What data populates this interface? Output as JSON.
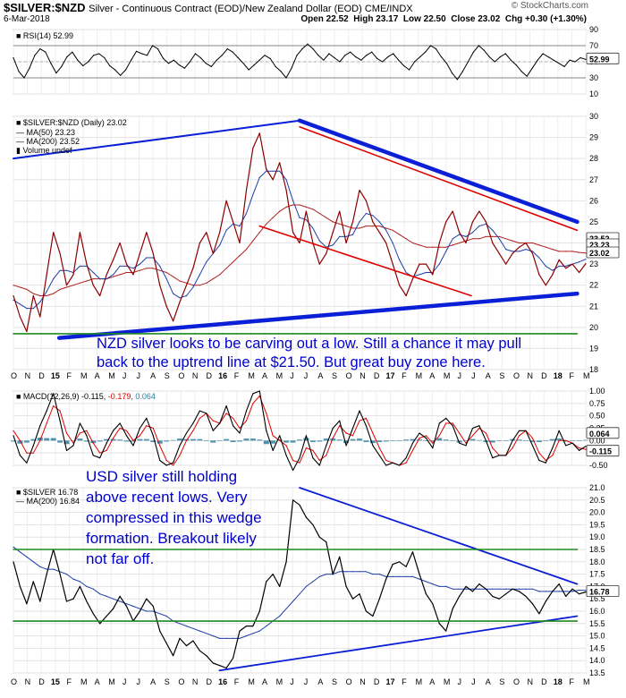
{
  "header": {
    "symbol": "$SILVER:$NZD",
    "description": "Silver - Continuous Contract (EOD)/New Zealand Dollar (EOD) CME/INDX",
    "date": "6-Mar-2018",
    "open": "Open 22.52",
    "high": "High 23.17",
    "low": "Low 22.50",
    "close": "Close 23.02",
    "chg": "Chg +0.30 (+1.30%)",
    "credit": "© StockCharts.com"
  },
  "x_axis": {
    "tick_labels": [
      "O",
      "N",
      "D",
      "15",
      "F",
      "M",
      "A",
      "M",
      "J",
      "J",
      "A",
      "S",
      "O",
      "N",
      "D",
      "16",
      "F",
      "M",
      "A",
      "M",
      "J",
      "J",
      "A",
      "S",
      "O",
      "N",
      "D",
      "17",
      "F",
      "M",
      "A",
      "M",
      "J",
      "J",
      "A",
      "S",
      "O",
      "N",
      "D",
      "18",
      "F",
      "M"
    ]
  },
  "colors": {
    "price": "#8b0000",
    "ma50": "#1f3fa8",
    "ma200": "#b02020",
    "trend_blue": "#0a1fd6",
    "channel_red": "#e00000",
    "support_green": "#1e8a1e",
    "annotation_text": "#0000cc"
  },
  "chart_data": [
    {
      "type": "line",
      "panel": "RSI",
      "legend": "RSI(14) 52.99",
      "last_value": "52.99",
      "y_ticks": [
        90,
        70,
        50,
        30,
        10
      ],
      "ylim": [
        10,
        90
      ],
      "reference_levels": [
        70,
        30
      ],
      "values": [
        55,
        38,
        30,
        42,
        58,
        66,
        62,
        48,
        36,
        44,
        56,
        62,
        52,
        45,
        50,
        58,
        60,
        55,
        45,
        40,
        33,
        40,
        52,
        63,
        60,
        58,
        70,
        66,
        54,
        48,
        52,
        46,
        42,
        50,
        60,
        55,
        48,
        44,
        52,
        58,
        66,
        62,
        55,
        48,
        40,
        46,
        52,
        58,
        54,
        44,
        38,
        30,
        42,
        58,
        66,
        72,
        66,
        58,
        52,
        60,
        55,
        50,
        58,
        62,
        56,
        52,
        58,
        62,
        54,
        50,
        56,
        60,
        52,
        45,
        40,
        50,
        56,
        62,
        70,
        66,
        56,
        48,
        36,
        28,
        38,
        50,
        62,
        70,
        64,
        56,
        50,
        56,
        60,
        52,
        46,
        38,
        32,
        42,
        52,
        60,
        56,
        52,
        48,
        44,
        52,
        50,
        55,
        53
      ]
    },
    {
      "type": "line",
      "panel": "SILVER:NZD",
      "legend": [
        "$SILVER:$NZD (Daily) 23.02",
        "MA(50) 23.23",
        "MA(200) 23.52",
        "Volume undef"
      ],
      "y_ticks": [
        30,
        29,
        28,
        27,
        26,
        25,
        24,
        23,
        22,
        21,
        20,
        19,
        18
      ],
      "ylim": [
        18,
        30
      ],
      "last_labels": [
        "23.52",
        "23.23",
        "23.02"
      ],
      "close": [
        21.5,
        20.5,
        19.8,
        21.5,
        20.5,
        22.5,
        24.5,
        23.5,
        22.0,
        22.5,
        24.5,
        23.0,
        22.0,
        21.5,
        22.5,
        23.2,
        24.0,
        23.0,
        22.5,
        23.5,
        24.5,
        23.5,
        22.0,
        21.0,
        20.3,
        21.2,
        22.0,
        22.8,
        24.0,
        24.5,
        23.5,
        24.5,
        26.0,
        25.0,
        24.0,
        26.5,
        28.5,
        29.2,
        27.5,
        27.0,
        27.8,
        26.5,
        24.5,
        24.0,
        25.5,
        24.0,
        23.0,
        23.5,
        24.5,
        25.5,
        24.0,
        25.0,
        26.5,
        26.0,
        25.0,
        24.5,
        24.0,
        23.0,
        22.0,
        21.5,
        22.3,
        23.0,
        23.0,
        22.5,
        24.0,
        25.0,
        25.5,
        24.5,
        24.0,
        25.0,
        25.5,
        25.0,
        24.0,
        23.5,
        23.0,
        23.5,
        23.8,
        24.0,
        23.5,
        22.5,
        22.0,
        22.5,
        23.2,
        22.8,
        23.0,
        22.6,
        23.02
      ],
      "ma50": [
        21.3,
        21.1,
        20.9,
        20.9,
        21.2,
        21.7,
        22.3,
        22.7,
        22.7,
        22.6,
        22.9,
        22.9,
        22.6,
        22.3,
        22.3,
        22.5,
        22.9,
        22.9,
        22.8,
        23.0,
        23.3,
        23.3,
        22.9,
        22.3,
        21.6,
        21.4,
        21.5,
        21.9,
        22.5,
        23.1,
        23.5,
        23.9,
        24.6,
        24.9,
        24.8,
        25.4,
        26.3,
        27.1,
        27.4,
        27.4,
        27.4,
        27.0,
        26.0,
        25.2,
        25.1,
        24.7,
        24.1,
        23.8,
        23.9,
        24.3,
        24.3,
        24.4,
        25.0,
        25.4,
        25.3,
        25.0,
        24.6,
        24.0,
        23.2,
        22.6,
        22.4,
        22.5,
        22.6,
        22.6,
        23.0,
        23.6,
        24.2,
        24.4,
        24.3,
        24.5,
        24.8,
        24.9,
        24.6,
        24.2,
        23.7,
        23.6,
        23.6,
        23.7,
        23.6,
        23.3,
        22.9,
        22.7,
        22.9,
        22.9,
        23.0,
        23.1,
        23.23
      ],
      "ma200": [
        22.0,
        21.9,
        21.8,
        21.6,
        21.5,
        21.5,
        21.6,
        21.8,
        21.9,
        22.0,
        22.1,
        22.2,
        22.3,
        22.3,
        22.3,
        22.4,
        22.5,
        22.6,
        22.6,
        22.7,
        22.8,
        22.8,
        22.7,
        22.6,
        22.4,
        22.2,
        22.1,
        22.0,
        22.0,
        22.1,
        22.3,
        22.5,
        22.8,
        23.1,
        23.4,
        23.7,
        24.1,
        24.5,
        24.9,
        25.2,
        25.5,
        25.7,
        25.8,
        25.8,
        25.7,
        25.6,
        25.4,
        25.2,
        25.0,
        24.9,
        24.8,
        24.7,
        24.7,
        24.8,
        24.8,
        24.8,
        24.7,
        24.6,
        24.4,
        24.2,
        24.0,
        23.9,
        23.8,
        23.8,
        23.8,
        23.8,
        23.9,
        24.0,
        24.1,
        24.2,
        24.2,
        24.3,
        24.3,
        24.3,
        24.2,
        24.1,
        24.0,
        24.0,
        24.0,
        23.9,
        23.8,
        23.7,
        23.6,
        23.6,
        23.6,
        23.55,
        23.52
      ],
      "trendlines": [
        {
          "name": "support",
          "from": [
            0.08,
            19.5
          ],
          "to": [
            0.985,
            21.6
          ],
          "color": "#0a1fd6"
        },
        {
          "name": "resistance",
          "from": [
            0.5,
            29.8
          ],
          "to": [
            0.985,
            25.0
          ],
          "color": "#0a1fd6"
        },
        {
          "name": "rsi-extension",
          "from": [
            0.0,
            28.0
          ],
          "to": [
            0.5,
            29.8
          ],
          "color": "#0a1fd6"
        },
        {
          "name": "channel-upper",
          "from": [
            0.5,
            29.5
          ],
          "to": [
            0.985,
            24.6
          ],
          "color": "#e00000"
        },
        {
          "name": "channel-lower",
          "from": [
            0.43,
            24.8
          ],
          "to": [
            0.8,
            21.5
          ],
          "color": "#e00000"
        },
        {
          "name": "horizontal-support",
          "from": [
            0.0,
            19.7
          ],
          "to": [
            0.985,
            19.7
          ],
          "color": "#1e8a1e"
        }
      ],
      "annotation": [
        "NZD silver looks to be carving out a low. Still a chance it may pull",
        "back to the uptrend line at $21.50. But great buy zone here."
      ]
    },
    {
      "type": "line",
      "panel": "MACD",
      "legend": [
        "MACD(12,26,9) -0.115,",
        "-0.179,",
        "0.064"
      ],
      "y_ticks": [
        1.0,
        0.75,
        0.5,
        0.25,
        0.0,
        -0.25,
        -0.5
      ],
      "ylim": [
        -0.5,
        1.0
      ],
      "last_labels": [
        "0.064",
        "-0.115"
      ],
      "macd": [
        0.1,
        -0.3,
        -0.45,
        -0.1,
        0.3,
        0.6,
        0.95,
        0.4,
        -0.2,
        -0.1,
        0.35,
        0.1,
        -0.3,
        -0.35,
        -0.05,
        0.2,
        0.35,
        0.1,
        -0.1,
        0.25,
        0.45,
        0.1,
        -0.4,
        -0.5,
        -0.45,
        -0.1,
        0.15,
        0.35,
        0.6,
        0.55,
        0.2,
        0.35,
        0.7,
        0.3,
        0.15,
        0.6,
        0.95,
        1.0,
        0.2,
        -0.2,
        0.1,
        -0.3,
        -0.6,
        -0.35,
        0.1,
        -0.35,
        -0.5,
        -0.1,
        0.25,
        0.4,
        -0.1,
        0.25,
        0.6,
        0.3,
        -0.1,
        -0.3,
        -0.5,
        -0.45,
        -0.5,
        -0.35,
        -0.05,
        0.15,
        0.05,
        -0.15,
        0.35,
        0.45,
        0.3,
        -0.05,
        -0.1,
        0.25,
        0.3,
        0.0,
        -0.35,
        -0.3,
        -0.3,
        0.0,
        0.2,
        0.2,
        -0.1,
        -0.4,
        -0.45,
        -0.15,
        0.2,
        -0.1,
        -0.05,
        -0.2,
        -0.115
      ],
      "signal": [
        0.2,
        0.0,
        -0.25,
        -0.25,
        0.0,
        0.35,
        0.7,
        0.6,
        0.15,
        -0.05,
        0.15,
        0.2,
        -0.05,
        -0.25,
        -0.2,
        0.05,
        0.25,
        0.2,
        0.0,
        0.1,
        0.3,
        0.25,
        -0.1,
        -0.4,
        -0.5,
        -0.3,
        0.0,
        0.2,
        0.45,
        0.55,
        0.4,
        0.35,
        0.55,
        0.45,
        0.25,
        0.4,
        0.75,
        0.9,
        0.55,
        0.1,
        0.0,
        -0.1,
        -0.4,
        -0.45,
        -0.15,
        -0.2,
        -0.4,
        -0.3,
        0.05,
        0.3,
        0.15,
        0.1,
        0.4,
        0.45,
        0.15,
        -0.15,
        -0.4,
        -0.45,
        -0.5,
        -0.45,
        -0.2,
        0.05,
        0.1,
        -0.05,
        0.1,
        0.35,
        0.35,
        0.15,
        -0.05,
        0.1,
        0.25,
        0.15,
        -0.15,
        -0.3,
        -0.3,
        -0.15,
        0.1,
        0.2,
        0.05,
        -0.25,
        -0.4,
        -0.3,
        0.0,
        0.0,
        -0.05,
        -0.15,
        -0.179
      ]
    },
    {
      "type": "line",
      "panel": "SILVER (USD)",
      "legend": [
        "$SILVER 16.78",
        "MA(200) 16.84"
      ],
      "y_ticks": [
        21.0,
        20.5,
        20.0,
        19.5,
        19.0,
        18.5,
        18.0,
        17.5,
        17.0,
        16.5,
        16.0,
        15.5,
        15.0,
        14.5,
        14.0,
        13.5
      ],
      "ylim": [
        13.5,
        21.0
      ],
      "last_label": "16.78",
      "close": [
        18.0,
        17.0,
        16.3,
        17.2,
        16.4,
        17.5,
        18.5,
        17.5,
        16.4,
        16.5,
        17.0,
        16.4,
        15.9,
        15.5,
        15.8,
        16.1,
        16.6,
        16.2,
        15.6,
        16.0,
        16.5,
        16.2,
        15.2,
        14.7,
        14.2,
        14.9,
        14.6,
        14.8,
        14.4,
        14.2,
        13.9,
        13.8,
        13.7,
        14.1,
        15.2,
        15.4,
        15.4,
        16.0,
        17.2,
        17.5,
        17.0,
        18.0,
        20.5,
        20.3,
        19.8,
        19.5,
        19.0,
        18.8,
        17.5,
        18.2,
        17.0,
        16.5,
        16.7,
        16.0,
        15.8,
        16.5,
        17.3,
        17.9,
        18.0,
        17.8,
        18.4,
        17.5,
        16.7,
        16.3,
        15.5,
        15.2,
        16.1,
        16.6,
        17.0,
        16.8,
        17.1,
        16.9,
        16.6,
        16.5,
        16.7,
        16.9,
        16.8,
        16.6,
        16.3,
        15.9,
        16.4,
        16.8,
        17.1,
        16.6,
        16.9,
        16.7,
        16.78
      ],
      "ma200": [
        18.6,
        18.4,
        18.2,
        18.0,
        17.8,
        17.7,
        17.7,
        17.6,
        17.5,
        17.3,
        17.2,
        17.0,
        16.9,
        16.7,
        16.6,
        16.5,
        16.4,
        16.3,
        16.2,
        16.1,
        16.0,
        16.0,
        15.9,
        15.8,
        15.6,
        15.5,
        15.4,
        15.3,
        15.2,
        15.1,
        15.0,
        14.9,
        14.9,
        14.9,
        14.9,
        15.0,
        15.1,
        15.2,
        15.4,
        15.6,
        15.8,
        16.1,
        16.4,
        16.7,
        17.0,
        17.2,
        17.4,
        17.5,
        17.5,
        17.6,
        17.6,
        17.6,
        17.6,
        17.6,
        17.5,
        17.5,
        17.4,
        17.4,
        17.4,
        17.4,
        17.4,
        17.3,
        17.2,
        17.1,
        17.0,
        17.0,
        16.9,
        16.9,
        16.9,
        16.9,
        16.9,
        16.9,
        16.9,
        16.9,
        16.9,
        16.9,
        16.9,
        16.9,
        16.9,
        16.8,
        16.8,
        16.8,
        16.8,
        16.8,
        16.8,
        16.85,
        16.84
      ],
      "trendlines": [
        {
          "name": "support",
          "from": [
            0.36,
            13.6
          ],
          "to": [
            0.985,
            15.8
          ],
          "color": "#0a1fd6"
        },
        {
          "name": "resistance",
          "from": [
            0.5,
            21.0
          ],
          "to": [
            0.985,
            17.1
          ],
          "color": "#0a1fd6"
        },
        {
          "name": "horizontal-resistance",
          "from": [
            0.0,
            18.5
          ],
          "to": [
            0.985,
            18.5
          ],
          "color": "#1e8a1e"
        },
        {
          "name": "horizontal-support",
          "from": [
            0.0,
            15.6
          ],
          "to": [
            0.985,
            15.6
          ],
          "color": "#1e8a1e"
        }
      ],
      "annotation": [
        "USD silver still holding",
        "above recent lows. Very",
        "compressed in this wedge",
        "formation. Breakout likely",
        "not far off."
      ]
    }
  ]
}
